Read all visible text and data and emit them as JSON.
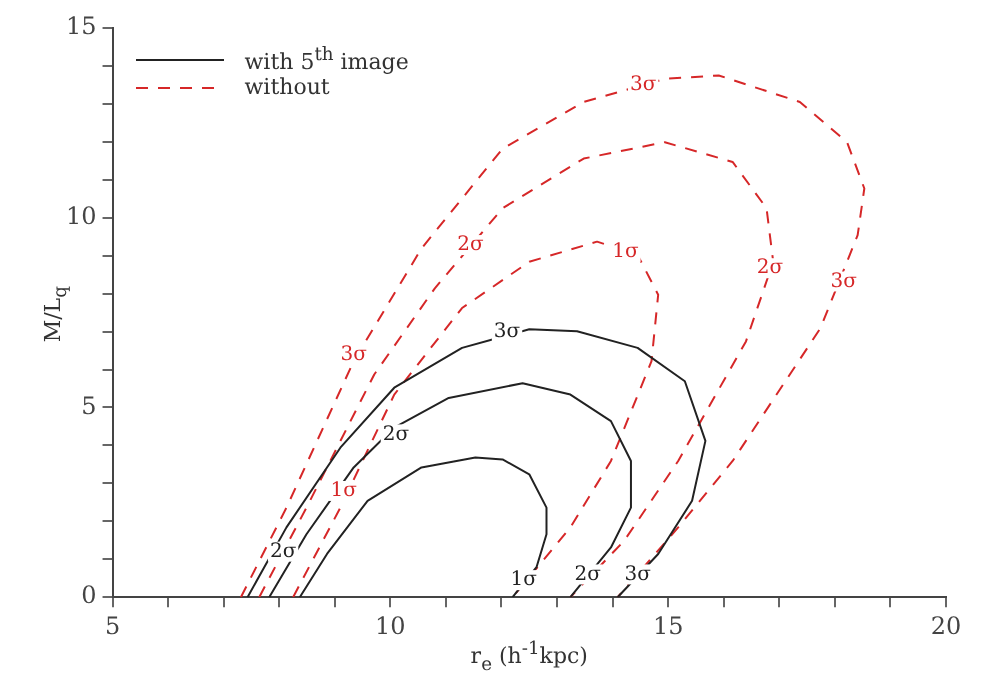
{
  "chart_data": {
    "type": "line",
    "xlabel": "r$_{e}$  (h$^{-1}$kpc)",
    "ylabel": "M/L$_{q}$",
    "legend": "top left",
    "marker": "none",
    "grid": false,
    "xlim": [
      5,
      20
    ],
    "ylim": [
      0,
      15
    ],
    "xticks": [
      5,
      {
        "value": 6,
        "label": null
      },
      {
        "value": 7,
        "label": null
      },
      {
        "value": 8,
        "label": null
      },
      {
        "value": 9,
        "label": null
      },
      10,
      {
        "value": 11,
        "label": null
      },
      {
        "value": 12,
        "label": null
      },
      {
        "value": 13,
        "label": null
      },
      {
        "value": 14,
        "label": null
      },
      15,
      {
        "value": 16,
        "label": null
      },
      {
        "value": 17,
        "label": null
      },
      {
        "value": 18,
        "label": null
      },
      {
        "value": 19,
        "label": null
      },
      20
    ],
    "yticks": [
      0,
      {
        "value": 1,
        "label": null
      },
      {
        "value": 2,
        "label": null
      },
      {
        "value": 3,
        "label": null
      },
      {
        "value": 4,
        "label": null
      },
      5,
      {
        "value": 6,
        "label": null
      },
      {
        "value": 7,
        "label": null
      },
      {
        "value": 8,
        "label": null
      },
      {
        "value": 9,
        "label": null
      },
      10,
      {
        "value": 11,
        "label": null
      },
      {
        "value": 12,
        "label": null
      },
      {
        "value": 13,
        "label": null
      },
      {
        "value": 14,
        "label": null
      },
      15
    ],
    "series": [
      {
        "name": "with 5$^{th}$ image",
        "color": "#222222",
        "line_style": "solid",
        "x": [
          8.37,
          8.86,
          9.59,
          10.56,
          11.53,
          12.02,
          12.5,
          12.81,
          12.81,
          12.63,
          12.2
        ],
        "values": [
          0,
          1.14,
          2.54,
          3.42,
          3.68,
          3.63,
          3.24,
          2.36,
          1.66,
          0.79,
          0
        ]
      },
      {
        "color": "#222222",
        "line_style": "solid",
        "x": [
          7.82,
          8.49,
          9.34,
          10.07,
          11.05,
          12.38,
          13.24,
          13.97,
          14.33,
          14.33,
          13.97,
          13.24
        ],
        "values": [
          0,
          1.66,
          3.42,
          4.47,
          5.25,
          5.64,
          5.34,
          4.64,
          3.59,
          2.36,
          1.31,
          0
        ]
      },
      {
        "color": "#222222",
        "line_style": "solid",
        "x": [
          7.43,
          8.13,
          9.1,
          10.07,
          11.29,
          12.5,
          13.36,
          14.45,
          15.3,
          15.67,
          15.43,
          14.82,
          14.09
        ],
        "values": [
          0,
          1.84,
          3.94,
          5.52,
          6.57,
          7.06,
          7.01,
          6.57,
          5.69,
          4.12,
          2.54,
          1.14,
          0
        ]
      },
      {
        "name": "without",
        "color": "#d62728",
        "line_style": "dashed",
        "x": [
          8.25,
          9.1,
          10.07,
          11.29,
          12.5,
          13.72,
          14.45,
          14.82,
          14.7,
          13.97,
          13.24,
          12.2
        ],
        "values": [
          0,
          2.36,
          5.34,
          7.62,
          8.84,
          9.37,
          9.02,
          7.97,
          6.22,
          3.59,
          1.84,
          0
        ]
      },
      {
        "color": "#d62728",
        "line_style": "dashed",
        "x": [
          7.64,
          8.49,
          9.71,
          10.8,
          12.02,
          13.48,
          14.94,
          16.16,
          16.77,
          16.89,
          16.4,
          15.18,
          14.21,
          13.24
        ],
        "values": [
          0,
          2.36,
          5.87,
          8.14,
          10.25,
          11.56,
          11.99,
          11.47,
          10.25,
          8.84,
          6.74,
          3.59,
          1.49,
          0
        ]
      },
      {
        "color": "#d62728",
        "line_style": "dashed",
        "x": [
          7.31,
          8.13,
          9.34,
          10.56,
          12.02,
          13.48,
          14.94,
          15.91,
          17.37,
          18.22,
          18.53,
          18.41,
          17.74,
          16.16,
          15.18,
          14.09
        ],
        "values": [
          0,
          2.36,
          6.22,
          9.19,
          11.82,
          13.05,
          13.66,
          13.75,
          13.05,
          11.99,
          10.77,
          9.54,
          7.09,
          3.59,
          1.84,
          0
        ]
      }
    ],
    "annotations": [
      {
        "text": "3σ",
        "x": 12.1,
        "y": 7.0
      },
      {
        "text": "2σ",
        "x": 10.1,
        "y": 4.29
      },
      {
        "text": "1σ",
        "x": 12.4,
        "y": 0.45
      },
      {
        "text": "2σ",
        "x": 13.55,
        "y": 0.6
      },
      {
        "text": "3σ",
        "x": 14.45,
        "y": 0.6
      },
      {
        "text": "3σ",
        "x": 14.55,
        "y": 13.5
      },
      {
        "text": "2σ",
        "x": 11.44,
        "y": 9.28
      },
      {
        "text": "1σ",
        "x": 14.23,
        "y": 9.1
      },
      {
        "text": "2σ",
        "x": 16.83,
        "y": 8.67
      },
      {
        "text": "3σ",
        "x": 18.16,
        "y": 8.32
      },
      {
        "text": "3σ",
        "x": 9.34,
        "y": 6.39
      },
      {
        "text": "2σ",
        "x": 8.07,
        "y": 1.2
      },
      {
        "text": "1σ",
        "x": 9.16,
        "y": 2.8
      }
    ]
  }
}
